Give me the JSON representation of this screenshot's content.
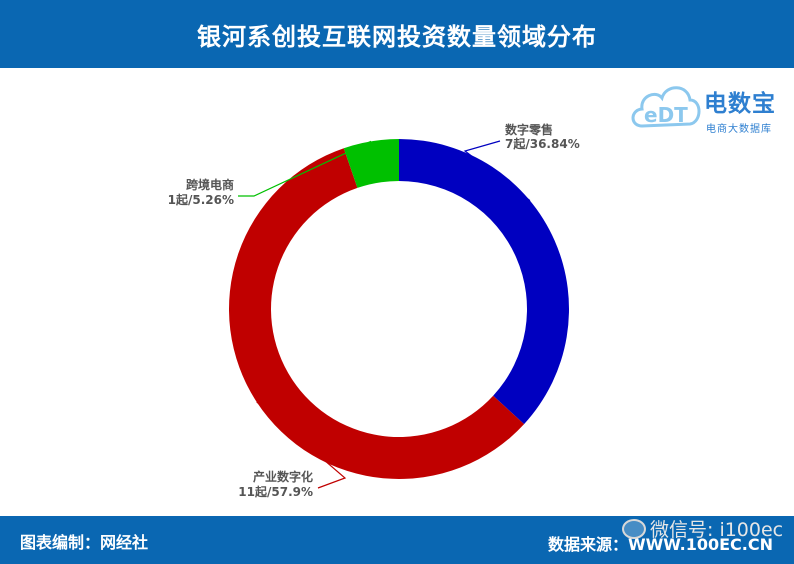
{
  "title": "银河系创投互联网投资数量领域分布",
  "footer": {
    "credit": "图表编制：网经社",
    "source": "数据来源：WWW.100EC.CN"
  },
  "watermark": {
    "icon": "wechat-icon",
    "text": "微信号: i100ec"
  },
  "logo": {
    "mark": "eDT",
    "brand": "电数宝",
    "sub": "电商大数据库"
  },
  "colors": {
    "header": "#0a67b2",
    "leader_label": "#555555"
  },
  "chart_data": {
    "type": "pie",
    "donut": true,
    "title": "银河系创投互联网投资数量领域分布",
    "slices": [
      {
        "name": "数字零售",
        "label": "7起/36.84%",
        "value": 7,
        "percent": 36.84,
        "color": "#0000c0"
      },
      {
        "name": "产业数字化",
        "label": "11起/57.9%",
        "value": 11,
        "percent": 57.9,
        "color": "#c00000"
      },
      {
        "name": "跨境电商",
        "label": "1起/5.26%",
        "value": 1,
        "percent": 5.26,
        "color": "#00c000"
      }
    ]
  }
}
